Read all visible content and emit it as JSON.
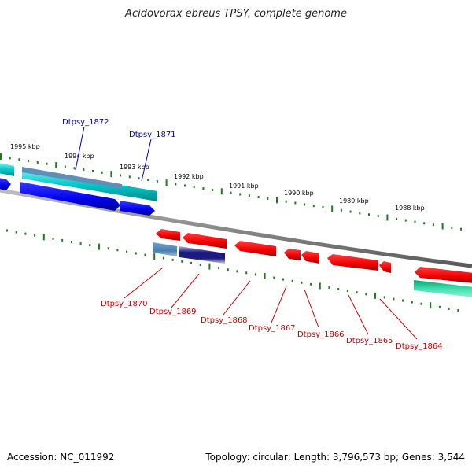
{
  "title": "Acidovorax ebreus TPSY, complete genome",
  "accession": "Accession: NC_011992",
  "summary": "Topology: circular; Length: 3,796,573 bp; Genes: 3,544",
  "colors": {
    "forward_label": "#0000cc",
    "reverse_label": "#cc0000",
    "ruler_tick": "#1a7f1a",
    "backbone": "#8a8a8a",
    "cds_blue": "#0000ee",
    "cds_red": "#ee0000",
    "cds_teal": "#00c8c8",
    "cds_seagreen": "#20c08a",
    "cds_steel": "#4a7fb0",
    "cds_navy": "#1a1a80"
  },
  "ruler_labels": [
    "1995 kbp",
    "1994 kbp",
    "1993 kbp",
    "1992 kbp",
    "1991 kbp",
    "1990 kbp",
    "1989 kbp",
    "1988 kbp"
  ],
  "forward_genes": [
    {
      "label": "Dtpsy_1872"
    },
    {
      "label": "Dtpsy_1871"
    }
  ],
  "reverse_genes": [
    {
      "label": "Dtpsy_1870"
    },
    {
      "label": "Dtpsy_1869"
    },
    {
      "label": "Dtpsy_1868"
    },
    {
      "label": "Dtpsy_1867"
    },
    {
      "label": "Dtpsy_1866"
    },
    {
      "label": "Dtpsy_1865"
    },
    {
      "label": "Dtpsy_1864"
    }
  ]
}
